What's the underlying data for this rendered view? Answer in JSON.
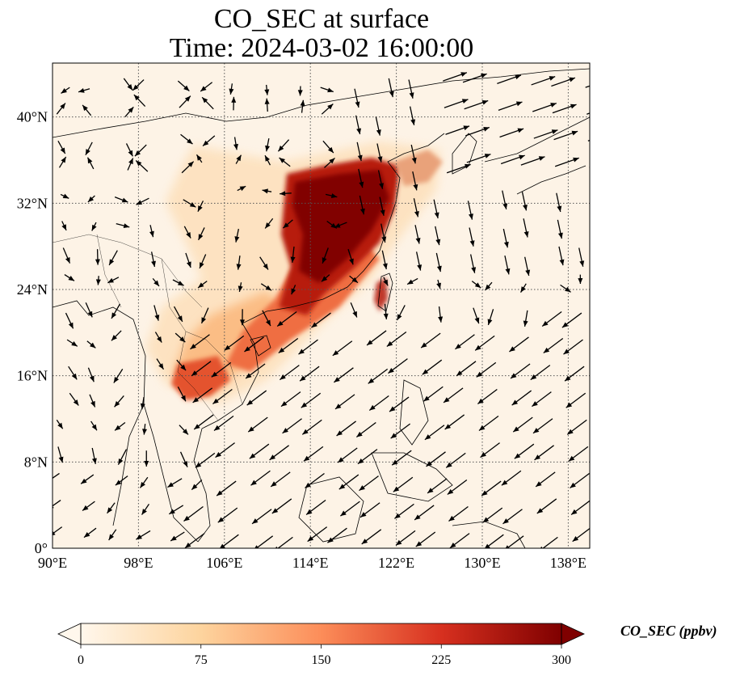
{
  "title": {
    "line1": "CO_SEC at surface",
    "line2": "Time: 2024-03-02 16:00:00"
  },
  "map": {
    "variable": "CO_SEC",
    "lon_range": [
      90,
      140
    ],
    "lat_range": [
      0,
      45
    ],
    "lon_ticks": [
      "90°E",
      "98°E",
      "106°E",
      "114°E",
      "122°E",
      "130°E",
      "138°E"
    ],
    "lat_ticks": [
      "0°",
      "8°N",
      "16°N",
      "24°N",
      "32°N",
      "40°N"
    ],
    "gridlines": "dotted",
    "features": [
      "coastlines",
      "country-borders",
      "wind-vectors"
    ]
  },
  "colorbar": {
    "label": "CO_SEC (ppbv)",
    "colormap": "OrRd",
    "ticks": [
      "0",
      "75",
      "150",
      "225",
      "300"
    ],
    "range": [
      0,
      300
    ],
    "extend": "both",
    "colors": [
      "#fff7ec",
      "#fdd49e",
      "#fc8d59",
      "#d7301f",
      "#7f0000"
    ]
  }
}
